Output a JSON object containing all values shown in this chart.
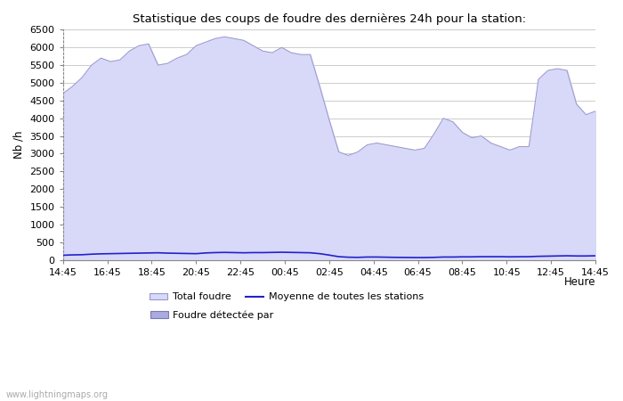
{
  "title": "Statistique des coups de foudre des dernières 24h pour la station:",
  "xlabel": "Heure",
  "ylabel": "Nb /h",
  "ylim": [
    0,
    6500
  ],
  "yticks": [
    0,
    500,
    1000,
    1500,
    2000,
    2500,
    3000,
    3500,
    4000,
    4500,
    5000,
    5500,
    6000,
    6500
  ],
  "xtick_labels": [
    "14:45",
    "16:45",
    "18:45",
    "20:45",
    "22:45",
    "00:45",
    "02:45",
    "04:45",
    "06:45",
    "08:45",
    "10:45",
    "12:45",
    "14:45"
  ],
  "fill_color_total": "#d8d8f8",
  "fill_edge_color": "#9999cc",
  "fill_color_detected": "#aaaadd",
  "line_color_moyenne": "#2222cc",
  "background_color": "#ffffff",
  "grid_color": "#cccccc",
  "watermark": "www.lightningmaps.org",
  "legend_total": "Total foudre",
  "legend_moyenne": "Moyenne de toutes les stations",
  "legend_detected": "Foudre détectée par",
  "total_foudre": [
    4700,
    4900,
    5150,
    5500,
    5700,
    5600,
    5650,
    5900,
    6050,
    6100,
    5500,
    5550,
    5700,
    5800,
    6050,
    6150,
    6250,
    6300,
    6250,
    6200,
    6050,
    5900,
    5850,
    6000,
    5850,
    5800,
    5800,
    4900,
    3950,
    3050,
    2950,
    3050,
    3250,
    3300,
    3250,
    3200,
    3150,
    3100,
    3150,
    3550,
    4000,
    3900,
    3600,
    3450,
    3500,
    3300,
    3200,
    3100,
    3200,
    3200,
    5100,
    5350,
    5400,
    5350,
    4400,
    4100,
    4200
  ],
  "moyenne_stations": [
    130,
    140,
    145,
    160,
    170,
    175,
    180,
    185,
    190,
    195,
    200,
    190,
    185,
    180,
    175,
    195,
    205,
    210,
    205,
    200,
    205,
    205,
    210,
    215,
    210,
    205,
    200,
    175,
    135,
    90,
    75,
    70,
    80,
    80,
    75,
    70,
    68,
    65,
    65,
    70,
    80,
    80,
    85,
    85,
    90,
    90,
    90,
    85,
    88,
    90,
    100,
    105,
    110,
    115,
    110,
    110,
    115
  ]
}
